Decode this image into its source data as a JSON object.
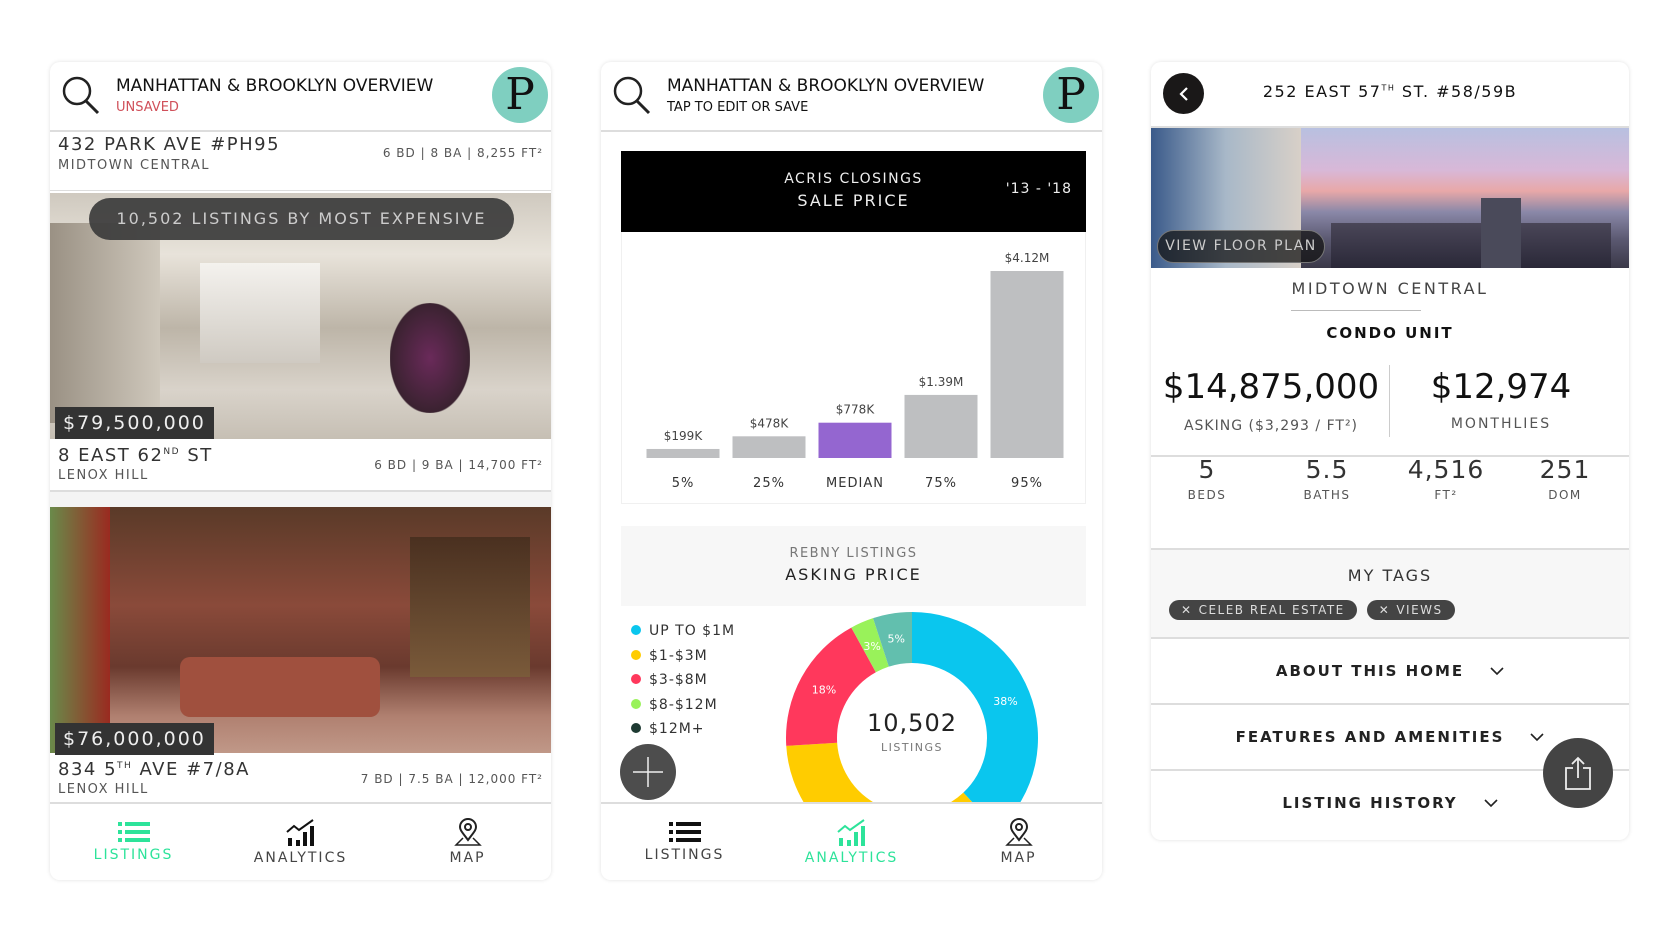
{
  "panel1": {
    "header": {
      "title": "MANHATTAN &  BROOKLYN OVERVIEW",
      "subtitle": "UNSAVED",
      "logo": "P"
    },
    "toast": "10,502 LISTINGS BY MOST EXPENSIVE",
    "peek": {
      "address": "432 PARK AVE #PH95",
      "neighborhood": "MIDTOWN CENTRAL",
      "specs": "6 BD | 8 BA | 8,255 FT²"
    },
    "listings": [
      {
        "price": "$79,500,000",
        "address": "8 EAST 62",
        "sup": "ND",
        "address_rest": " ST",
        "neighborhood": "LENOX HILL",
        "specs": "6 BD | 9 BA | 14,700 FT²"
      },
      {
        "price": "$76,000,000",
        "address": "834 5",
        "sup": "TH",
        "address_rest": " AVE #7/8A",
        "neighborhood": "LENOX HILL",
        "specs": "7 BD | 7.5 BA | 12,000 FT²"
      }
    ],
    "nav": [
      {
        "label": "LISTINGS",
        "icon": "list-icon",
        "active": true
      },
      {
        "label": "ANALYTICS",
        "icon": "chart-icon"
      },
      {
        "label": "MAP",
        "icon": "map-pin-icon"
      }
    ]
  },
  "panel2": {
    "header": {
      "title": "MANHATTAN &  BROOKLYN OVERVIEW",
      "subtitle": "TAP TO EDIT OR SAVE",
      "logo": "P"
    },
    "nav": [
      {
        "label": "LISTINGS",
        "icon": "list-icon"
      },
      {
        "label": "ANALYTICS",
        "icon": "chart-icon",
        "active": true
      },
      {
        "label": "MAP",
        "icon": "map-pin-icon"
      }
    ]
  },
  "chart_data": [
    {
      "type": "bar",
      "title": "ACRIS CLOSINGS",
      "subtitle": "SALE PRICE",
      "period": "'13 - '18",
      "categories": [
        "5%",
        "25%",
        "MEDIAN",
        "75%",
        "95%"
      ],
      "values": [
        0.199,
        0.478,
        0.778,
        1.39,
        4.12
      ],
      "value_unit": "$M",
      "data_labels": [
        "$199K",
        "$478K",
        "$778K",
        "$1.39M",
        "$4.12M"
      ],
      "highlight": "MEDIAN",
      "colors": {
        "bar": "#bebfc1",
        "highlight": "#9466d0"
      },
      "ylim": [
        0,
        4.12
      ]
    },
    {
      "type": "pie",
      "title": "REBNY LISTINGS",
      "subtitle": "ASKING PRICE",
      "center_value": "10,502",
      "center_label": "LISTINGS",
      "series": [
        {
          "name": "UP TO $1M",
          "value": 38,
          "label": "38%",
          "color": "#0ac6ee"
        },
        {
          "name": "$1-$3M",
          "value": 36,
          "label": "",
          "color": "#ffcc00"
        },
        {
          "name": "$3-$8M",
          "value": 18,
          "label": "18%",
          "color": "#ff385c"
        },
        {
          "name": "$8-$12M",
          "value": 3,
          "label": "3%",
          "color": "#99f25a"
        },
        {
          "name": "$12M+",
          "value": 5,
          "label": "5%",
          "color": "#62bfae"
        }
      ],
      "legend_colors": [
        "#0ac6ee",
        "#ffcc00",
        "#ff385c",
        "#99f25a",
        "#1e3a32"
      ]
    }
  ],
  "panel3": {
    "address": "252 EAST 57",
    "address_sup": "TH",
    "address_rest": " ST. #58/59B",
    "floor_plan": "VIEW FLOOR PLAN",
    "neighborhood": "MIDTOWN CENTRAL",
    "type": "CONDO UNIT",
    "asking": "$14,875,000",
    "asking_label": "ASKING ($3,293 / FT²)",
    "monthlies": "$12,974",
    "monthlies_label": "MONTHLIES",
    "stats": [
      {
        "value": "5",
        "label": "BEDS"
      },
      {
        "value": "5.5",
        "label": "BATHS"
      },
      {
        "value": "4,516",
        "label": "FT²"
      },
      {
        "value": "251",
        "label": "DOM"
      }
    ],
    "tags_title": "MY TAGS",
    "tags": [
      "CELEB REAL ESTATE",
      "VIEWS"
    ],
    "sections": [
      "ABOUT THIS HOME",
      "FEATURES AND AMENITIES",
      "LISTING HISTORY"
    ]
  }
}
